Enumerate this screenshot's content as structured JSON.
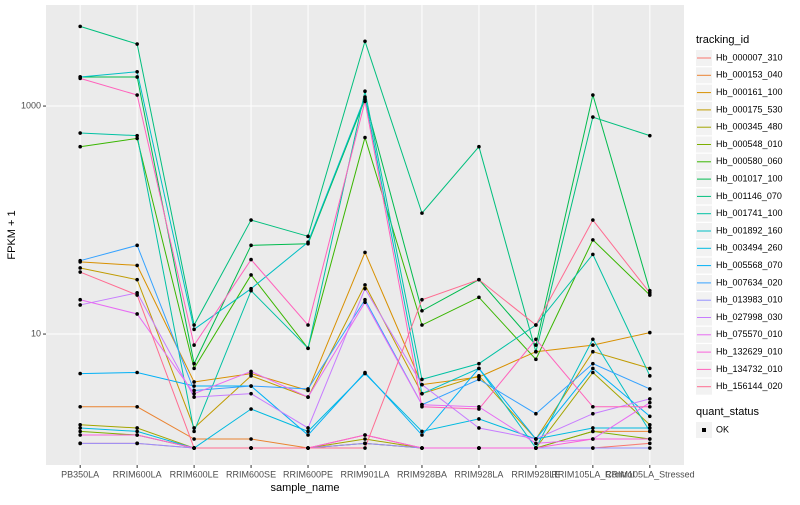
{
  "chart_data": {
    "type": "line",
    "log_y": true,
    "grid": true,
    "x_label": "sample_name",
    "y_label": "FPKM + 1",
    "legend_title": "tracking_id",
    "legend_position": "right",
    "shape_legend": {
      "title": "quant_status",
      "labels": [
        "OK"
      ]
    },
    "categories": [
      "PB350LA",
      "RRIM600LA",
      "RRIM600LE",
      "RRIM600SE",
      "RRIM600PE",
      "RRIM901LA",
      "RRIM928BA",
      "RRIM928LA",
      "RRIM928LE",
      "RRIM105LA_Control",
      "RRIM105LA_Stressed"
    ],
    "ylim": [
      0.71,
      7700
    ],
    "yticks": [
      10,
      1000
    ],
    "series": [
      {
        "name": "Hb_000007_310",
        "color": "#F8766D",
        "values": [
          1.1,
          1.1,
          1,
          1,
          1,
          1.1,
          1,
          1,
          1,
          1,
          1.1
        ]
      },
      {
        "name": "Hb_000153_040",
        "color": "#EA8331",
        "values": [
          2.3,
          2.3,
          1.2,
          1.2,
          1,
          1.3,
          1,
          1,
          1,
          1.4,
          1.4
        ]
      },
      {
        "name": "Hb_000161_100",
        "color": "#D89000",
        "values": [
          43,
          40,
          3.8,
          4.5,
          3.2,
          52,
          3.6,
          4.2,
          7,
          8,
          10.3
        ]
      },
      {
        "name": "Hb_000175_530",
        "color": "#C09B00",
        "values": [
          38,
          30,
          1.5,
          4.3,
          2.8,
          27,
          3,
          4.3,
          1.2,
          7,
          5
        ]
      },
      {
        "name": "Hb_000345_480",
        "color": "#A3A500",
        "values": [
          1.6,
          1.5,
          1,
          1,
          1,
          1.2,
          1,
          1,
          1,
          4.6,
          1.6
        ]
      },
      {
        "name": "Hb_000548_010",
        "color": "#7CAE00",
        "values": [
          1.4,
          1.3,
          1,
          1,
          1,
          1.1,
          1,
          1,
          1,
          1.4,
          1.2
        ]
      },
      {
        "name": "Hb_000580_060",
        "color": "#39B600",
        "values": [
          440,
          520,
          5,
          33,
          7.5,
          530,
          12,
          21,
          6,
          67,
          22
        ]
      },
      {
        "name": "Hb_001017_100",
        "color": "#00BB4E",
        "values": [
          1800,
          1800,
          5.5,
          60,
          62,
          1150,
          16,
          30,
          8,
          1250,
          24
        ]
      },
      {
        "name": "Hb_001146_070",
        "color": "#00BF7D",
        "values": [
          5000,
          3500,
          12,
          100,
          72,
          3700,
          115,
          440,
          7,
          800,
          550
        ]
      },
      {
        "name": "Hb_001741_100",
        "color": "#00C1A3",
        "values": [
          580,
          550,
          1.4,
          24,
          7.5,
          1350,
          4,
          5.5,
          12,
          50,
          4.3
        ]
      },
      {
        "name": "Hb_001892_160",
        "color": "#00BFC4",
        "values": [
          1800,
          2000,
          11,
          25,
          64,
          1200,
          3,
          5,
          1,
          9,
          1.4
        ]
      },
      {
        "name": "Hb_003494_260",
        "color": "#00BAE0",
        "values": [
          1.5,
          1.4,
          1,
          2.2,
          1.4,
          4.5,
          1.4,
          1.8,
          1.2,
          1.5,
          1.5
        ]
      },
      {
        "name": "Hb_005568_070",
        "color": "#00B0F6",
        "values": [
          4.5,
          4.6,
          3.5,
          3.5,
          1.3,
          4.6,
          1.3,
          5,
          1.2,
          5,
          1.9
        ]
      },
      {
        "name": "Hb_007634_020",
        "color": "#35A2FF",
        "values": [
          44,
          60,
          3.2,
          3.5,
          3.3,
          20,
          2.4,
          4,
          2,
          5.5,
          3.3
        ]
      },
      {
        "name": "Hb_013983_010",
        "color": "#9590FF",
        "values": [
          1.1,
          1.1,
          1,
          1,
          1,
          1.1,
          1,
          1,
          1,
          1,
          1
        ]
      },
      {
        "name": "Hb_027998_030",
        "color": "#C77CFF",
        "values": [
          18,
          23,
          2.8,
          3,
          1.5,
          25,
          3.6,
          1.5,
          1.2,
          2,
          2.7
        ]
      },
      {
        "name": "Hb_075570_010",
        "color": "#E76BF3",
        "values": [
          20,
          15,
          3,
          4.7,
          2.8,
          19,
          2.4,
          2.3,
          1.1,
          1.2,
          2.5
        ]
      },
      {
        "name": "Hb_132629_010",
        "color": "#FA62DB",
        "values": [
          1.3,
          1.3,
          1,
          1,
          1,
          1.3,
          1,
          1,
          1,
          1.2,
          1.2
        ]
      },
      {
        "name": "Hb_134732_010",
        "color": "#FF62BC",
        "values": [
          1750,
          1250,
          8,
          45,
          12,
          1100,
          2.3,
          2.2,
          9,
          2.3,
          2.3
        ]
      },
      {
        "name": "Hb_156144_020",
        "color": "#FF6C91",
        "values": [
          35,
          22,
          1,
          1,
          1,
          1,
          20,
          30,
          12,
          100,
          23
        ]
      }
    ]
  }
}
